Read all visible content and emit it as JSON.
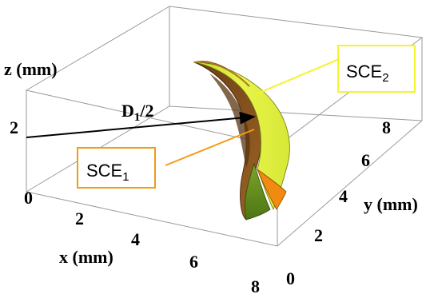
{
  "axes": {
    "x": {
      "label": "x (mm)",
      "ticks": [
        "0",
        "2",
        "4",
        "6",
        "8"
      ]
    },
    "y": {
      "label": "y (mm)",
      "ticks": [
        "0",
        "2",
        "4",
        "6",
        "8"
      ]
    },
    "z": {
      "label": "z (mm)",
      "ticks": [
        "2"
      ]
    }
  },
  "annotations": {
    "dimension": {
      "main": "D",
      "sub": "1",
      "suffix": "/2"
    },
    "sce1": {
      "main": "SCE",
      "sub": "1",
      "border_color": "#f39c12"
    },
    "sce2": {
      "main": "SCE",
      "sub": "2",
      "border_color": "#f4f42a"
    }
  },
  "colors": {
    "surface_yellow": "#dcee3a",
    "surface_green": "#5c8a1a",
    "surface_brown": "#7a4a1a",
    "surface_orange": "#f08a10",
    "leader_sce1": "#f39c12",
    "leader_sce2": "#f4f42a",
    "box_edges": "#9a9a9a"
  }
}
